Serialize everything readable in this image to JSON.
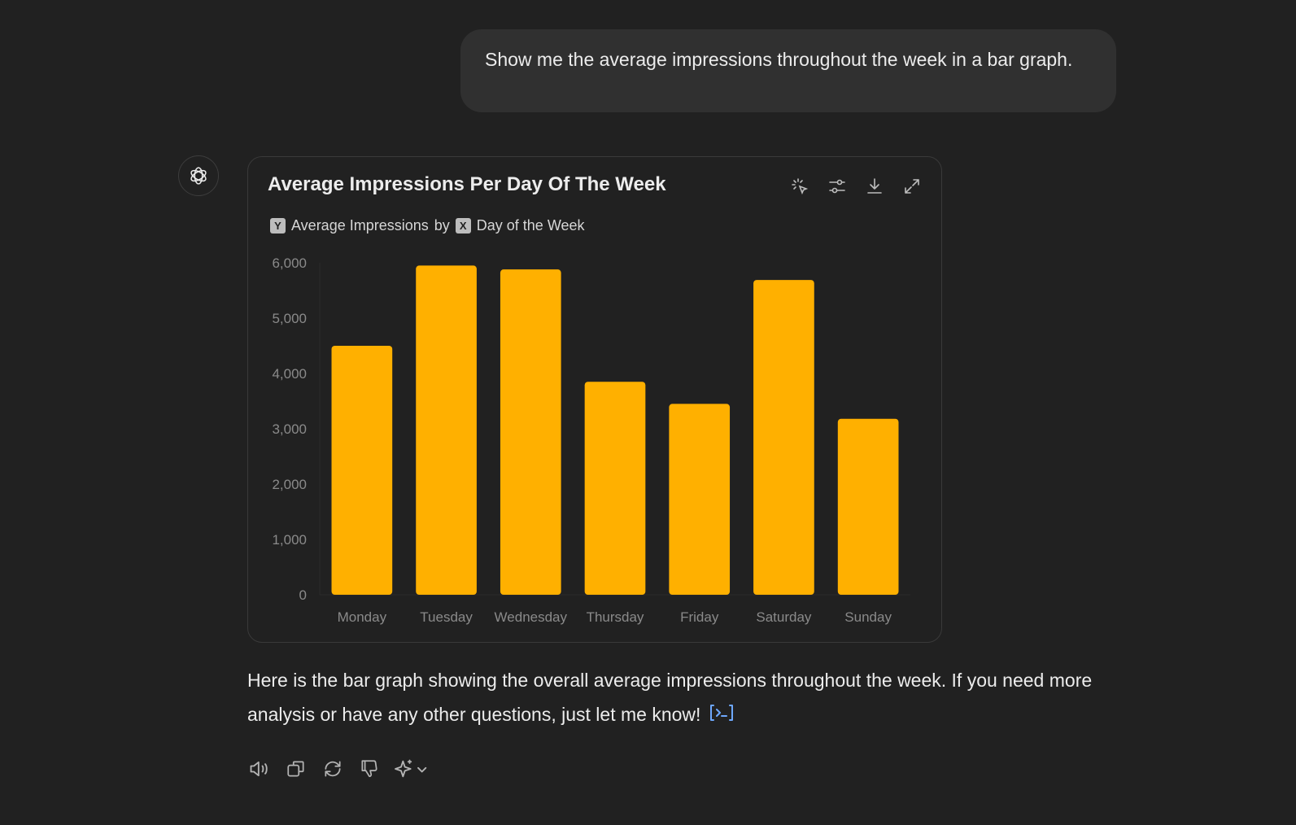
{
  "user_message": "Show me the average impressions throughout the week in a bar graph.",
  "chart_card": {
    "title": "Average Impressions Per Day Of The Week",
    "y_badge": "Y",
    "y_field": "Average Impressions",
    "by_label": "by",
    "x_badge": "X",
    "x_field": "Day of the Week",
    "tools": [
      "select-icon",
      "adjust-icon",
      "download-icon",
      "expand-icon"
    ]
  },
  "chart_data": {
    "type": "bar",
    "categories": [
      "Monday",
      "Tuesday",
      "Wednesday",
      "Thursday",
      "Friday",
      "Saturday",
      "Sunday"
    ],
    "values": [
      4500,
      5950,
      5880,
      3850,
      3450,
      5690,
      3180
    ],
    "title": "Average Impressions Per Day Of The Week",
    "xlabel": "Day of the Week",
    "ylabel": "Average Impressions",
    "ylim": [
      0,
      6000
    ],
    "yticks": [
      "0",
      "1,000",
      "2,000",
      "3,000",
      "4,000",
      "5,000",
      "6,000"
    ],
    "bar_color": "#ffb000",
    "grid": false
  },
  "response_text": "Here is the bar graph showing the overall average impressions throughout the week. If you need more analysis or have any other questions, just let me know!",
  "accent_color": "#6ea8fe",
  "actions": [
    "read-aloud-icon",
    "copy-icon",
    "regenerate-icon",
    "thumbs-down-icon",
    "sparkle-model-icon"
  ]
}
